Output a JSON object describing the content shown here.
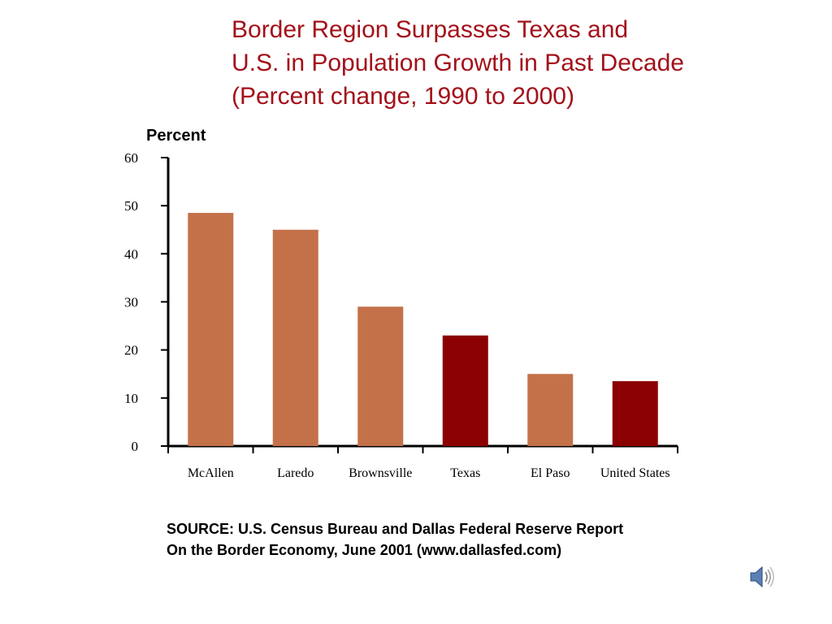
{
  "title": {
    "line1": "Border Region Surpasses Texas and",
    "line2": "U.S. in Population Growth in Past Decade",
    "line3": "(Percent change, 1990 to 2000)"
  },
  "source": {
    "line1": "SOURCE: U.S. Census Bureau and Dallas Federal Reserve Report",
    "line2": "On the Border Economy, June 2001 (www.dallasfed.com)"
  },
  "speaker_icon": "speaker-icon",
  "colors": {
    "border_city": "#c4714a",
    "aggregate": "#8b0000",
    "title": "#a3111a"
  },
  "chart_data": {
    "type": "bar",
    "title": "Border Region Surpasses Texas and U.S. in Population Growth in Past Decade (Percent change, 1990 to 2000)",
    "ylabel": "Percent",
    "xlabel": "",
    "ylim": [
      0,
      60
    ],
    "yticks": [
      0,
      10,
      20,
      30,
      40,
      50,
      60
    ],
    "categories": [
      "McAllen",
      "Laredo",
      "Brownsville",
      "Texas",
      "El Paso",
      "United States"
    ],
    "values": [
      48.5,
      45,
      29,
      23,
      15,
      13.5
    ],
    "bar_colors": [
      "#c4714a",
      "#c4714a",
      "#c4714a",
      "#8b0000",
      "#c4714a",
      "#8b0000"
    ],
    "grid": false,
    "legend": "none"
  }
}
